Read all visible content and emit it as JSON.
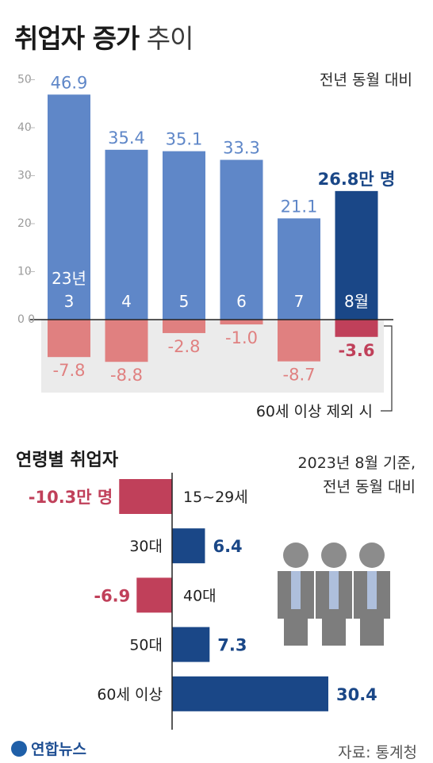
{
  "header": {
    "title_bold": "취업자 증가",
    "title_light": "추이",
    "basis": "전년 동월 대비"
  },
  "logo_text": "연합뉴스",
  "source": "자료: 통계청",
  "colors": {
    "blue": "#5f87c8",
    "blue_dark": "#1a4787",
    "red_light": "#e08080",
    "red_dark": "#c0405a",
    "shade": "#ebebeb",
    "axis": "#222222",
    "grid_text": "#9a9a9a"
  },
  "chart_data": [
    {
      "type": "bar",
      "title": "취업자 증가 추이",
      "subtitle": "전년 동월 대비",
      "ylim": [
        -15,
        50
      ],
      "yticks": [
        0,
        10,
        20,
        30,
        40,
        50
      ],
      "categories": [
        "23년 3",
        "4",
        "5",
        "6",
        "7",
        "8월"
      ],
      "series": [
        {
          "name": "",
          "values": [
            46.9,
            35.4,
            35.1,
            33.3,
            21.1,
            26.8
          ],
          "labels": [
            "46.9",
            "35.4",
            "35.1",
            "33.3",
            "21.1",
            "26.8만 명"
          ]
        },
        {
          "name": "60세 이상 제외 시",
          "values": [
            -7.8,
            -8.8,
            -2.8,
            -1.0,
            -8.7,
            -3.6
          ],
          "labels": [
            "-7.8",
            "-8.8",
            "-2.8",
            "-1.0",
            "-8.7",
            "-3.6"
          ]
        }
      ],
      "annotation": "60세 이상 제외 시",
      "grid": false
    },
    {
      "type": "bar",
      "orientation": "horizontal",
      "title": "연령별 취업자",
      "subtitle": [
        "2023년 8월 기준,",
        "전년 동월 대비"
      ],
      "categories": [
        "15~29세",
        "30대",
        "40대",
        "50대",
        "60세 이상"
      ],
      "values": [
        -10.3,
        6.4,
        -6.9,
        7.3,
        30.4
      ],
      "labels": [
        "-10.3만 명",
        "6.4",
        "-6.9",
        "7.3",
        "30.4"
      ],
      "grid": false
    }
  ]
}
